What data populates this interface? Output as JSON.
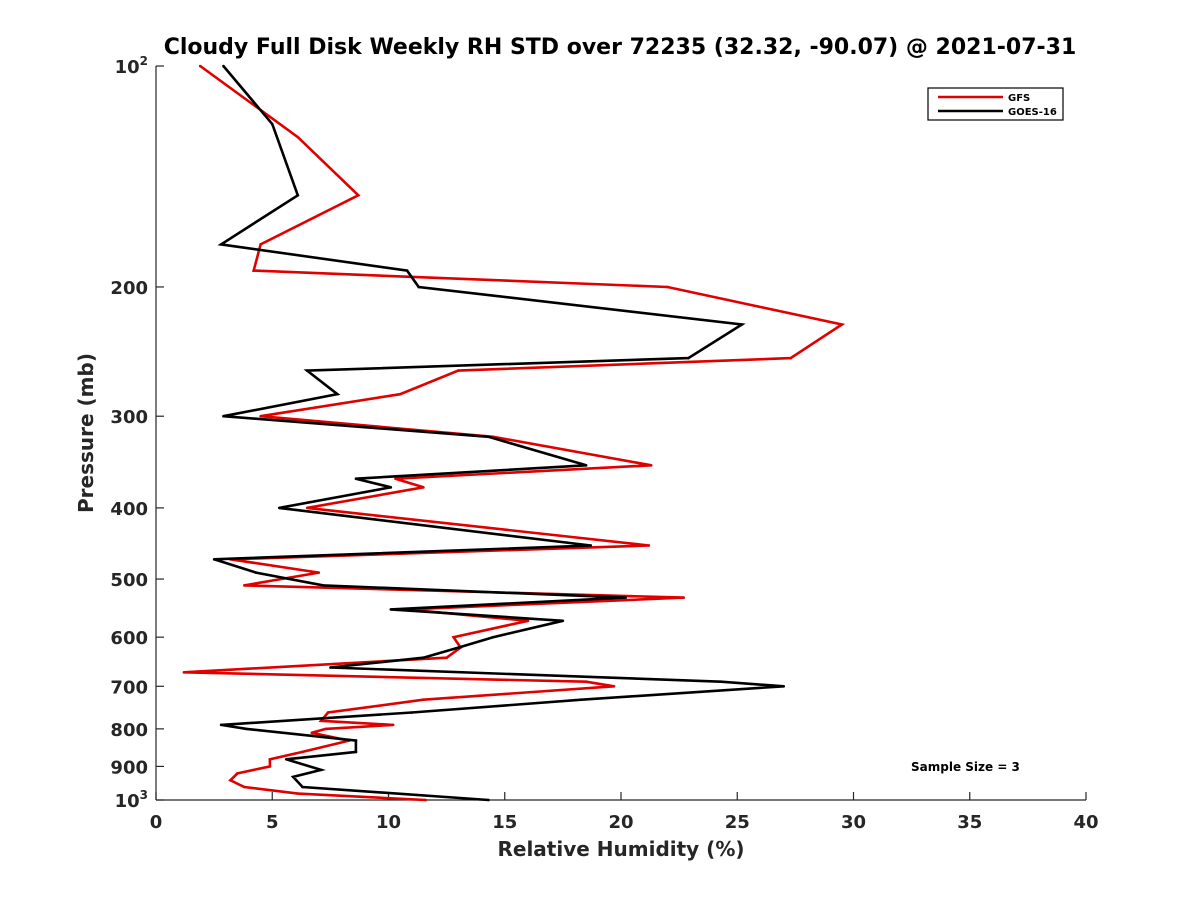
{
  "chart_data": {
    "type": "line",
    "title": "Cloudy Full Disk Weekly RH STD over 72235 (32.32, -90.07) @ 2021-07-31",
    "xlabel": "Relative Humidity (%)",
    "ylabel": "Pressure (mb)",
    "xlim": [
      0,
      40
    ],
    "ylim": [
      100,
      1000
    ],
    "yscale": "log",
    "y_reversed": true,
    "xticks": [
      0,
      5,
      10,
      15,
      20,
      25,
      30,
      35,
      40
    ],
    "xtick_labels": [
      "0",
      "5",
      "10",
      "15",
      "20",
      "25",
      "30",
      "35",
      "40"
    ],
    "yticks": [
      {
        "value": 100,
        "base": "10",
        "exp": "2"
      },
      {
        "value": 200,
        "label": "200"
      },
      {
        "value": 300,
        "label": "300"
      },
      {
        "value": 400,
        "label": "400"
      },
      {
        "value": 500,
        "label": "500"
      },
      {
        "value": 600,
        "label": "600"
      },
      {
        "value": 700,
        "label": "700"
      },
      {
        "value": 800,
        "label": "800"
      },
      {
        "value": 900,
        "label": "900"
      },
      {
        "value": 1000,
        "base": "10",
        "exp": "3"
      }
    ],
    "legend_position": "top-right",
    "annotation": "Sample Size = 3",
    "series": [
      {
        "name": "GFS",
        "color": "#e00000",
        "points": [
          [
            1.9,
            100
          ],
          [
            6.1,
            125
          ],
          [
            8.7,
            150
          ],
          [
            4.5,
            175
          ],
          [
            4.2,
            190
          ],
          [
            22.0,
            200
          ],
          [
            29.5,
            225
          ],
          [
            27.3,
            250
          ],
          [
            13.0,
            260
          ],
          [
            10.5,
            280
          ],
          [
            4.5,
            300
          ],
          [
            14.5,
            320
          ],
          [
            21.3,
            350
          ],
          [
            10.3,
            365
          ],
          [
            11.5,
            375
          ],
          [
            6.5,
            400
          ],
          [
            21.2,
            450
          ],
          [
            3.2,
            470
          ],
          [
            7.0,
            490
          ],
          [
            3.8,
            510
          ],
          [
            22.7,
            530
          ],
          [
            10.8,
            550
          ],
          [
            16.0,
            570
          ],
          [
            12.8,
            600
          ],
          [
            13.1,
            620
          ],
          [
            12.5,
            640
          ],
          [
            1.2,
            670
          ],
          [
            18.5,
            690
          ],
          [
            19.7,
            700
          ],
          [
            11.5,
            730
          ],
          [
            7.4,
            760
          ],
          [
            7.1,
            780
          ],
          [
            10.2,
            790
          ],
          [
            7.3,
            800
          ],
          [
            6.7,
            810
          ],
          [
            8.3,
            830
          ],
          [
            6.3,
            860
          ],
          [
            4.9,
            880
          ],
          [
            4.9,
            900
          ],
          [
            3.5,
            920
          ],
          [
            3.2,
            940
          ],
          [
            3.8,
            960
          ],
          [
            6.1,
            980
          ],
          [
            11.6,
            1000
          ]
        ]
      },
      {
        "name": "GOES-16",
        "color": "#000000",
        "points": [
          [
            2.9,
            100
          ],
          [
            5.0,
            120
          ],
          [
            6.1,
            150
          ],
          [
            2.8,
            175
          ],
          [
            10.8,
            190
          ],
          [
            11.3,
            200
          ],
          [
            25.2,
            225
          ],
          [
            22.9,
            250
          ],
          [
            6.5,
            260
          ],
          [
            7.8,
            280
          ],
          [
            2.9,
            300
          ],
          [
            14.3,
            320
          ],
          [
            18.5,
            350
          ],
          [
            8.6,
            365
          ],
          [
            10.1,
            375
          ],
          [
            5.3,
            400
          ],
          [
            18.7,
            450
          ],
          [
            2.5,
            470
          ],
          [
            4.3,
            490
          ],
          [
            7.2,
            510
          ],
          [
            20.2,
            530
          ],
          [
            10.1,
            550
          ],
          [
            17.5,
            570
          ],
          [
            14.5,
            600
          ],
          [
            13.0,
            620
          ],
          [
            11.5,
            640
          ],
          [
            7.5,
            660
          ],
          [
            24.3,
            690
          ],
          [
            27.0,
            700
          ],
          [
            18.3,
            730
          ],
          [
            11.0,
            760
          ],
          [
            2.8,
            790
          ],
          [
            3.9,
            800
          ],
          [
            8.6,
            830
          ],
          [
            8.6,
            860
          ],
          [
            5.6,
            880
          ],
          [
            7.1,
            910
          ],
          [
            5.9,
            930
          ],
          [
            6.3,
            960
          ],
          [
            14.3,
            1000
          ]
        ]
      }
    ]
  }
}
